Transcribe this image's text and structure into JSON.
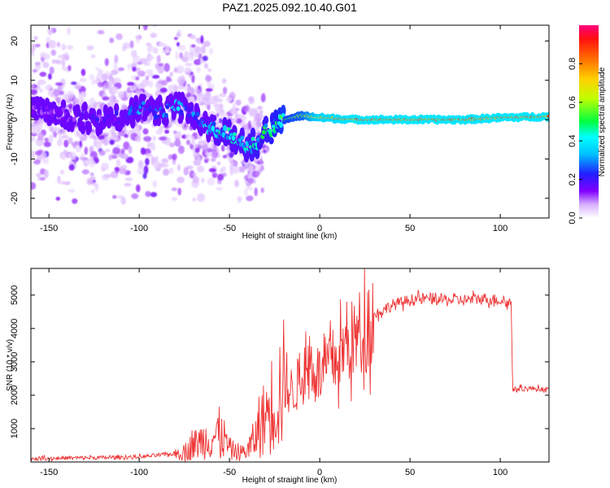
{
  "title": "PAZ1.2025.092.10.40.G01",
  "chart_data": [
    {
      "type": "heatmap",
      "xlabel": "Height of straight line (km)",
      "ylabel": "Frequency (Hz)",
      "xlim": [
        -160,
        127
      ],
      "ylim": [
        -25,
        24
      ],
      "xticks": [
        -150,
        -100,
        -50,
        0,
        50,
        100
      ],
      "yticks": [
        -20,
        -10,
        0,
        10,
        20
      ],
      "colorbar": {
        "label": "Normalized spectral amplitude",
        "range": [
          0,
          1
        ],
        "ticks": [
          0.0,
          0.2,
          0.4,
          0.6,
          0.8
        ],
        "colors": [
          "#ffffff",
          "#c080ff",
          "#8000ff",
          "#0000ff",
          "#00ffff",
          "#00ff00",
          "#ffff00",
          "#ff8000",
          "#ff0000",
          "#ff0080"
        ]
      },
      "ridge": {
        "x": [
          -155,
          -140,
          -125,
          -110,
          -100,
          -90,
          -80,
          -70,
          -62,
          -55,
          -50,
          -45,
          -40,
          -35,
          -30,
          -25,
          -20,
          -10,
          0,
          20,
          50,
          80,
          100,
          127
        ],
        "y": [
          2,
          1,
          0,
          0.5,
          3,
          2,
          3,
          2,
          -2,
          -3,
          -4,
          -5,
          -7,
          -6,
          -3,
          -2,
          0,
          1,
          0.5,
          0,
          0,
          0,
          0.5,
          0.8
        ],
        "amplitude": [
          0.15,
          0.15,
          0.18,
          0.18,
          0.3,
          0.25,
          0.35,
          0.3,
          0.35,
          0.4,
          0.4,
          0.4,
          0.4,
          0.45,
          0.45,
          0.5,
          0.55,
          0.6,
          0.8,
          0.85,
          0.85,
          0.85,
          0.85,
          0.85
        ]
      }
    },
    {
      "type": "line",
      "xlabel": "Height of straight line (km)",
      "ylabel": "SNR (10 * v/v)",
      "xlim": [
        -160,
        127
      ],
      "ylim": [
        0,
        5800
      ],
      "xticks": [
        -150,
        -100,
        -50,
        0,
        50,
        100
      ],
      "yticks": [
        1000,
        2000,
        3000,
        4000,
        5000
      ],
      "color": "#ee3333",
      "series": {
        "x": [
          -160,
          -140,
          -120,
          -100,
          -90,
          -80,
          -75,
          -70,
          -65,
          -60,
          -55,
          -50,
          -45,
          -40,
          -35,
          -30,
          -25,
          -20,
          -15,
          -10,
          -5,
          0,
          5,
          10,
          15,
          20,
          25,
          30,
          40,
          50,
          60,
          70,
          80,
          90,
          100,
          106,
          107,
          110,
          120,
          127
        ],
        "y": [
          100,
          120,
          130,
          150,
          200,
          250,
          300,
          500,
          650,
          700,
          900,
          400,
          250,
          350,
          800,
          1400,
          1900,
          2300,
          2100,
          2500,
          3000,
          2600,
          2900,
          3100,
          3500,
          3700,
          4100,
          4400,
          4700,
          4850,
          4900,
          4850,
          4850,
          4900,
          4850,
          4750,
          2150,
          2200,
          2200,
          2150
        ]
      }
    }
  ]
}
